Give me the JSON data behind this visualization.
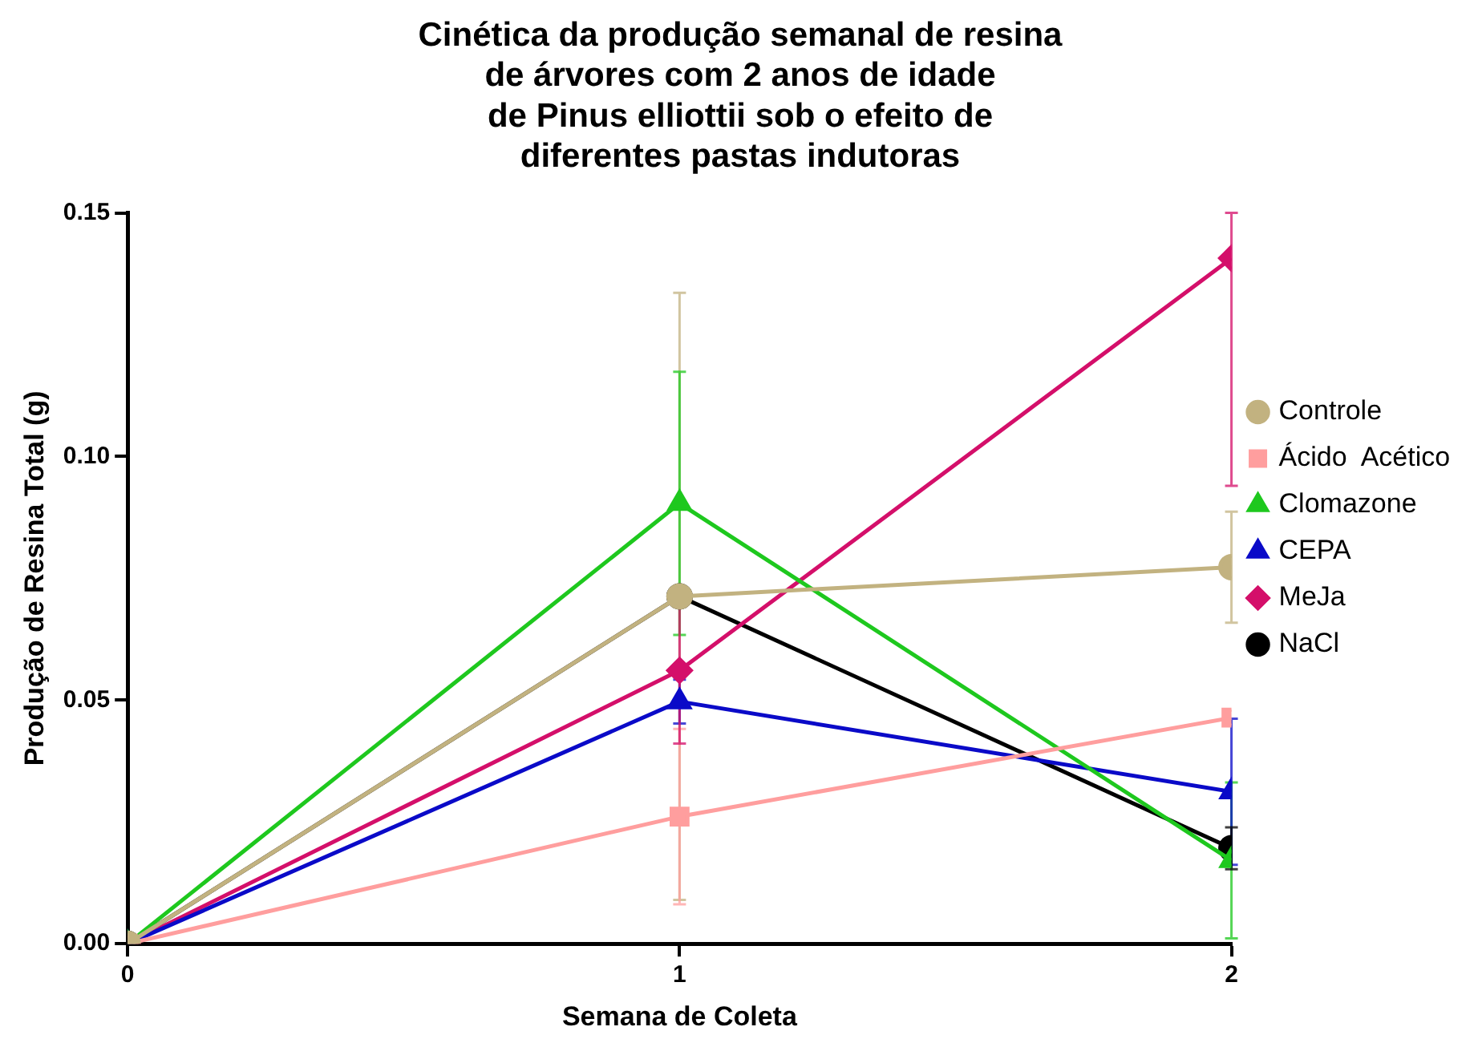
{
  "chart_data": {
    "type": "line",
    "title": "Cinética da produção semanal de resina\nde árvores com 2 anos de idade\nde Pinus elliottii sob o efeito de\ndiferentes pastas indutoras",
    "xlabel": "Semana de Coleta",
    "ylabel": "Produção de Resina Total (g)",
    "x": [
      0,
      1,
      2
    ],
    "xlim": [
      0,
      2
    ],
    "xticks": [
      0,
      1,
      2
    ],
    "ylim": [
      0,
      0.15
    ],
    "yticks": [
      {
        "value": 0,
        "label": "0.00"
      },
      {
        "value": 0.05,
        "label": "0.05"
      },
      {
        "value": 0.1,
        "label": "0.10"
      },
      {
        "value": 0.15,
        "label": "0.15"
      }
    ],
    "grid": false,
    "legend": "right",
    "series": [
      {
        "name": "Controle",
        "color": "#c2b280",
        "marker": "circle",
        "values": [
          0,
          0.0713,
          0.0773
        ],
        "errors": [
          null,
          0.0623,
          0.0114
        ]
      },
      {
        "name": "Ácido  Acético",
        "color": "#ff9e9e",
        "marker": "square",
        "values": [
          0,
          0.0261,
          0.0464
        ],
        "errors": [
          null,
          0.018,
          null
        ]
      },
      {
        "name": "Clomazone",
        "color": "#1ec81e",
        "marker": "triangle",
        "values": [
          0,
          0.0904,
          0.0171
        ],
        "errors": [
          null,
          0.027,
          0.016
        ]
      },
      {
        "name": "CEPA",
        "color": "#0a0ac8",
        "marker": "triangle",
        "values": [
          0,
          0.0497,
          0.0312
        ],
        "errors": [
          null,
          0.0045,
          0.015
        ]
      },
      {
        "name": "MeJa",
        "color": "#d40f6a",
        "marker": "diamond",
        "values": [
          0,
          0.0561,
          0.1407
        ],
        "errors": [
          null,
          0.015,
          [
            0.094,
            0.15
          ]
        ]
      },
      {
        "name": "NaCl",
        "color": "#000000",
        "marker": "circle",
        "values": [
          0,
          0.0713,
          0.0196
        ],
        "errors": [
          null,
          null,
          0.0043
        ]
      }
    ]
  }
}
